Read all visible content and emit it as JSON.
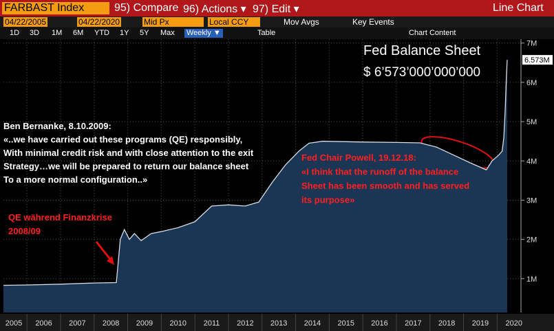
{
  "toolbar": {
    "ticker": "FARBAST Index",
    "compare": "95) Compare",
    "actions": "96) Actions ▾",
    "edit": "97) Edit ▾",
    "view": "Line Chart",
    "start_date": "04/22/2005",
    "end_date": "04/22/2020",
    "price": "Mid Px",
    "currency": "Local CCY",
    "mov_avgs": "Mov Avgs",
    "key_events": "Key Events",
    "ranges": [
      "1D",
      "3D",
      "1M",
      "6M",
      "YTD",
      "1Y",
      "5Y",
      "Max"
    ],
    "frequency": "Weekly ▼",
    "table": "Table",
    "chart_content": "Chart Content"
  },
  "chart_data": {
    "type": "area",
    "title": "Fed Balance Sheet",
    "subtitle": "$ 6’573’000’000’000",
    "color": "#1b3554",
    "line_color": "#d8dde6",
    "x": [
      2005.3,
      2006.0,
      2007.0,
      2008.0,
      2008.66,
      2008.7,
      2008.78,
      2008.9,
      2009.05,
      2009.2,
      2009.4,
      2009.7,
      2010.0,
      2010.5,
      2011.0,
      2011.5,
      2012.0,
      2012.5,
      2012.9,
      2013.3,
      2013.7,
      2014.1,
      2014.4,
      2014.8,
      2016.0,
      2017.0,
      2017.7,
      2018.2,
      2018.7,
      2019.2,
      2019.68,
      2019.85,
      2020.05,
      2020.15,
      2020.2,
      2020.24,
      2020.27,
      2020.3
    ],
    "values": [
      0.83,
      0.84,
      0.86,
      0.89,
      0.9,
      1.25,
      2.0,
      2.25,
      2.0,
      2.15,
      1.97,
      2.15,
      2.2,
      2.3,
      2.45,
      2.85,
      2.88,
      2.85,
      2.95,
      3.45,
      3.9,
      4.25,
      4.45,
      4.5,
      4.48,
      4.47,
      4.46,
      4.35,
      4.15,
      3.95,
      3.77,
      4.0,
      4.15,
      4.25,
      4.6,
      5.3,
      6.0,
      6.573
    ],
    "value_labels": [
      null,
      null,
      null,
      null,
      null,
      null,
      null,
      null,
      null,
      null,
      null,
      null,
      null,
      null,
      null,
      null,
      null,
      null,
      null,
      null,
      null,
      null,
      null,
      null,
      null,
      null,
      null,
      null,
      null,
      null,
      null,
      null,
      null,
      null,
      null,
      null,
      null,
      "6.573M"
    ],
    "xlim": [
      2005.3,
      2020.71
    ],
    "xticks": [
      2005,
      2006,
      2007,
      2008,
      2009,
      2010,
      2011,
      2012,
      2013,
      2014,
      2015,
      2016,
      2017,
      2018,
      2019,
      2020
    ],
    "ylim": [
      0.14,
      7.1
    ],
    "yticks": [
      {
        "value": 1,
        "label": "1M"
      },
      {
        "value": 2,
        "label": "2M"
      },
      {
        "value": 3,
        "label": "3M"
      },
      {
        "value": 4,
        "label": "4M"
      },
      {
        "value": 5,
        "label": "5M"
      },
      {
        "value": 6,
        "label": "6M"
      },
      {
        "value": 7,
        "label": "7M"
      }
    ],
    "grid": true,
    "annotations": [
      {
        "color": "#ffffff",
        "lines": [
          "Ben Bernanke, 8.10.2009:",
          "«..we have carried out these programs (QE) responsibly,",
          "With minimal credit risk and with close attention to the exit",
          "Strategy…we will be prepared to return our balance sheet",
          "To a more normal configuration..»"
        ]
      },
      {
        "color": "#ff2020",
        "lines": [
          "QE während Finanzkrise",
          "2008/09"
        ]
      },
      {
        "color": "#ff2020",
        "lines": [
          "Fed Chair Powell, 19.12.18:",
          "«I think that the runoff of the balance",
          "Sheet has been smooth and has served",
          "its purpose»"
        ]
      }
    ]
  }
}
